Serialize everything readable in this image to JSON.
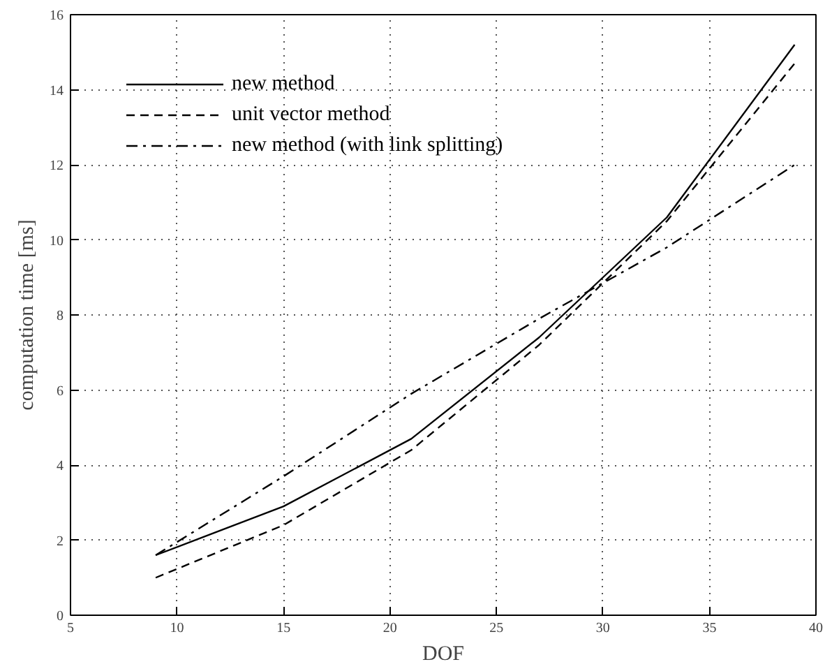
{
  "chart_data": {
    "type": "line",
    "xlabel": "DOF",
    "ylabel": "computation time [ms]",
    "x": [
      9,
      15,
      21,
      27,
      33,
      39
    ],
    "series": [
      {
        "name": "new method",
        "color": "#000000",
        "line_style": "solid",
        "values": [
          1.6,
          2.9,
          4.7,
          7.4,
          10.6,
          15.2
        ]
      },
      {
        "name": "unit vector method",
        "color": "#000000",
        "line_style": "dashed",
        "values": [
          1.0,
          2.4,
          4.4,
          7.2,
          10.5,
          14.7
        ]
      },
      {
        "name": "new method (with link splitting)",
        "color": "#000000",
        "line_style": "dashdot",
        "values": [
          1.6,
          3.7,
          5.9,
          7.9,
          9.8,
          12.0
        ]
      }
    ],
    "xlim": [
      5,
      40
    ],
    "ylim": [
      0,
      16
    ],
    "xticks": [
      5,
      10,
      15,
      20,
      25,
      30,
      35,
      40
    ],
    "yticks": [
      0,
      2,
      4,
      6,
      8,
      10,
      12,
      14,
      16
    ],
    "grid": true,
    "legend": "top left",
    "marker": "none"
  }
}
